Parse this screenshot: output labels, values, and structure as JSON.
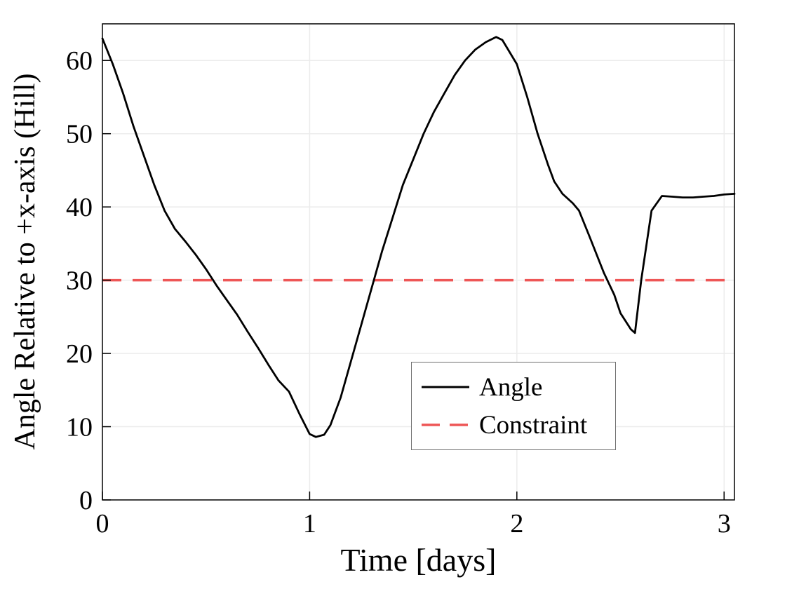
{
  "chart_data": {
    "type": "line",
    "title": "",
    "xlabel": "Time [days]",
    "ylabel": "Angle Relative to +x-axis (Hill)",
    "xlim": [
      0,
      3.05
    ],
    "ylim": [
      0,
      65
    ],
    "xticks": [
      0,
      1,
      2,
      3
    ],
    "yticks": [
      0,
      10,
      20,
      30,
      40,
      50,
      60
    ],
    "grid": true,
    "grid_color": "#ececec",
    "axis_color": "#000000",
    "legend": {
      "position": "lower-center-right",
      "entries": [
        {
          "label": "Angle",
          "style": "solid",
          "color": "#000000"
        },
        {
          "label": "Constraint",
          "style": "dashed",
          "color": "#ee5656"
        }
      ]
    },
    "series": [
      {
        "name": "Angle",
        "color": "#000000",
        "points": [
          [
            0.0,
            63.0
          ],
          [
            0.05,
            59.5
          ],
          [
            0.1,
            55.5
          ],
          [
            0.15,
            51.0
          ],
          [
            0.2,
            47.0
          ],
          [
            0.25,
            43.0
          ],
          [
            0.3,
            39.5
          ],
          [
            0.35,
            37.0
          ],
          [
            0.4,
            35.3
          ],
          [
            0.45,
            33.5
          ],
          [
            0.5,
            31.5
          ],
          [
            0.55,
            29.3
          ],
          [
            0.6,
            27.3
          ],
          [
            0.65,
            25.3
          ],
          [
            0.7,
            23.0
          ],
          [
            0.75,
            20.8
          ],
          [
            0.8,
            18.5
          ],
          [
            0.85,
            16.3
          ],
          [
            0.9,
            14.8
          ],
          [
            0.95,
            11.8
          ],
          [
            1.0,
            9.0
          ],
          [
            1.03,
            8.6
          ],
          [
            1.07,
            8.9
          ],
          [
            1.1,
            10.2
          ],
          [
            1.15,
            14.0
          ],
          [
            1.2,
            19.0
          ],
          [
            1.25,
            24.0
          ],
          [
            1.3,
            29.0
          ],
          [
            1.35,
            34.0
          ],
          [
            1.4,
            38.5
          ],
          [
            1.45,
            43.0
          ],
          [
            1.5,
            46.5
          ],
          [
            1.55,
            50.0
          ],
          [
            1.6,
            53.0
          ],
          [
            1.65,
            55.5
          ],
          [
            1.7,
            58.0
          ],
          [
            1.75,
            60.0
          ],
          [
            1.8,
            61.5
          ],
          [
            1.85,
            62.5
          ],
          [
            1.9,
            63.2
          ],
          [
            1.93,
            62.8
          ],
          [
            2.0,
            59.5
          ],
          [
            2.05,
            55.0
          ],
          [
            2.1,
            50.0
          ],
          [
            2.15,
            45.8
          ],
          [
            2.18,
            43.5
          ],
          [
            2.22,
            41.8
          ],
          [
            2.27,
            40.5
          ],
          [
            2.3,
            39.5
          ],
          [
            2.35,
            36.0
          ],
          [
            2.42,
            31.0
          ],
          [
            2.47,
            28.0
          ],
          [
            2.5,
            25.5
          ],
          [
            2.55,
            23.3
          ],
          [
            2.57,
            22.8
          ],
          [
            2.6,
            30.0
          ],
          [
            2.65,
            39.5
          ],
          [
            2.7,
            41.5
          ],
          [
            2.75,
            41.4
          ],
          [
            2.8,
            41.3
          ],
          [
            2.85,
            41.3
          ],
          [
            2.9,
            41.4
          ],
          [
            2.95,
            41.5
          ],
          [
            3.0,
            41.7
          ],
          [
            3.05,
            41.8
          ]
        ]
      }
    ],
    "constraint": {
      "name": "Constraint",
      "value": 30,
      "color": "#ee5656",
      "style": "dashed"
    }
  }
}
